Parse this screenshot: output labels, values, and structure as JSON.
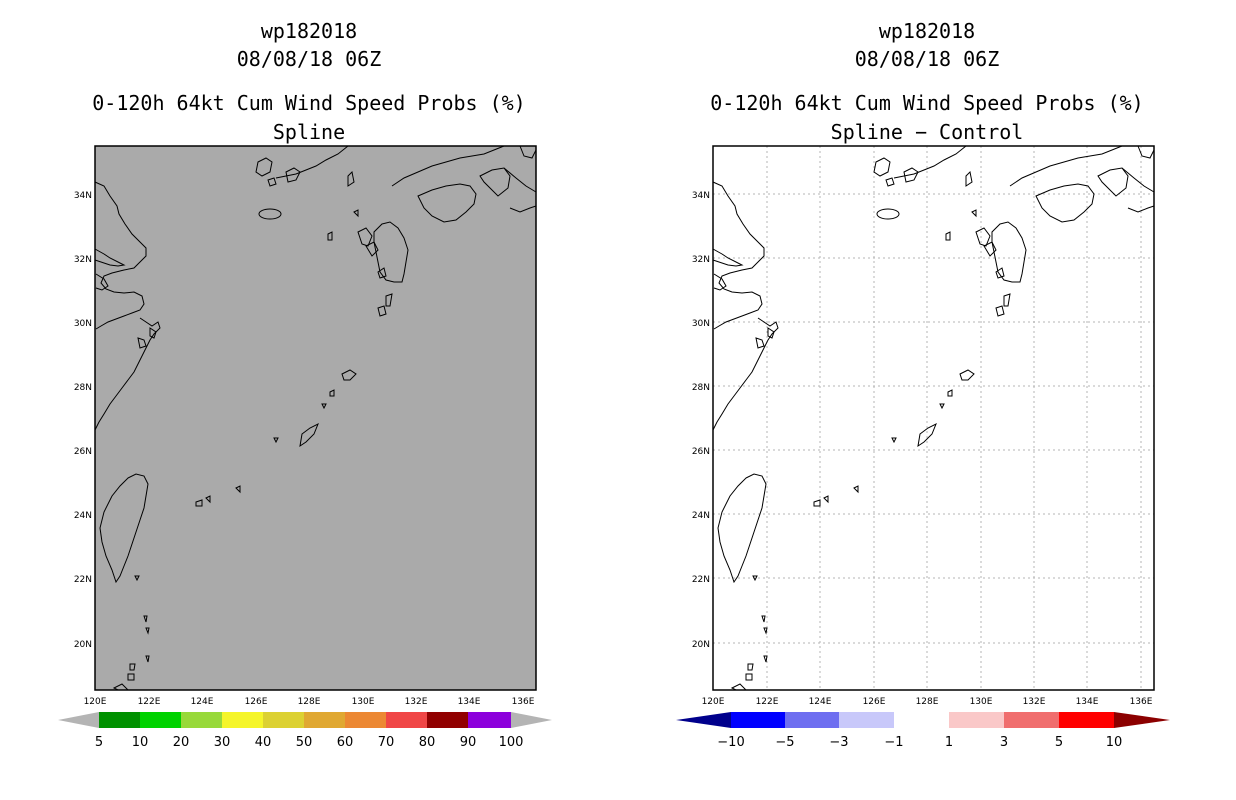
{
  "left_panel": {
    "title_lines": [
      "wp182018",
      "08/08/18 06Z",
      "0-120h 64kt Cum Wind Speed Probs (%)",
      "Spline"
    ],
    "background_color": "#aaaaaa",
    "gridlines": false,
    "colorbar": {
      "labels": [
        "5",
        "10",
        "20",
        "30",
        "40",
        "50",
        "60",
        "70",
        "80",
        "90",
        "100"
      ],
      "colors": [
        "#009100",
        "#00d200",
        "#98d93a",
        "#f5f52a",
        "#dcd132",
        "#e0a832",
        "#ec8833",
        "#f04646",
        "#910000",
        "#8c00dc"
      ],
      "end_color": "#b4b4b4"
    }
  },
  "right_panel": {
    "title_lines": [
      "wp182018",
      "08/08/18 06Z",
      "0-120h 64kt Cum Wind Speed Probs (%)",
      "Spline − Control"
    ],
    "background_color": "#ffffff",
    "gridlines": true,
    "colorbar": {
      "labels": [
        "−10",
        "−5",
        "−3",
        "−1",
        "1",
        "3",
        "5",
        "10"
      ],
      "colors": [
        "#0000ff",
        "#6e6ef0",
        "#c8c8fa",
        "#ffffff",
        "#fac8c8",
        "#f06e6e",
        "#ff0000"
      ],
      "low_end_color": "#00008c",
      "high_end_color": "#8c0000"
    }
  },
  "map": {
    "lon_labels": [
      "120E",
      "122E",
      "124E",
      "126E",
      "128E",
      "130E",
      "132E",
      "134E",
      "136E"
    ],
    "lat_labels": [
      "34N",
      "32N",
      "30N",
      "28N",
      "26N",
      "24N",
      "22N",
      "20N"
    ],
    "lon_range": [
      120,
      136.5
    ],
    "lat_range": [
      18.5,
      35.5
    ]
  }
}
